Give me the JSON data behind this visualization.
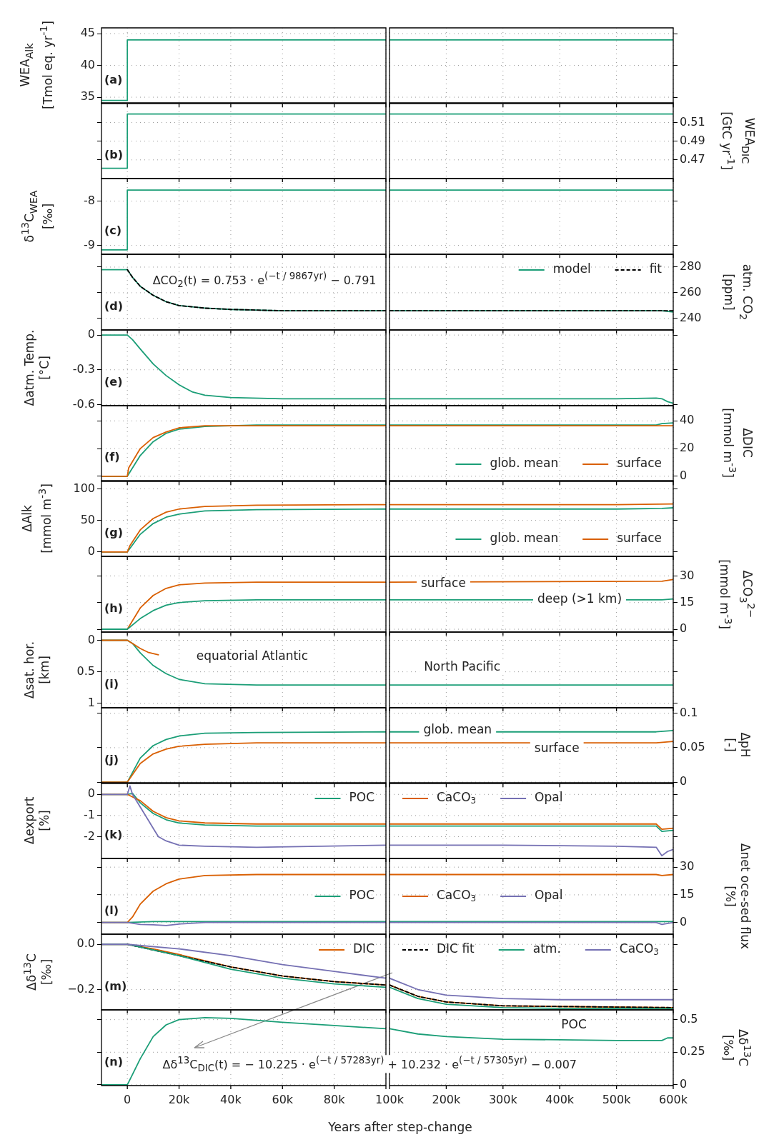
{
  "chart_data": [
    {
      "type": "line",
      "ylabel": "WEA$_{Alk}$\n[Tmol eq. yr$^{-1}$]",
      "annotations": [
        "(a)"
      ],
      "xlim": [
        -10000,
        100000
      ],
      "xticks": [
        0,
        20000,
        40000,
        60000,
        80000,
        100000
      ],
      "ylim": [
        34,
        45.9
      ],
      "yticks": [
        35,
        40,
        45
      ],
      "tick_labels": "y",
      "grid": true,
      "series": [
        {
          "color": "#1b9e77",
          "x": [
            -10000,
            0,
            0,
            100000
          ],
          "values": [
            34.5,
            34.5,
            44,
            44
          ]
        }
      ]
    },
    {
      "type": "line",
      "xlim": [
        100000,
        600000
      ],
      "xticks": [
        100000,
        200000,
        300000,
        400000,
        500000,
        600000
      ],
      "ylim": [
        34,
        45.9
      ],
      "yticks": [
        35,
        40,
        45
      ],
      "tick_labels": false,
      "grid": true,
      "series": [
        {
          "color": "#1b9e77",
          "x": [
            100000,
            600000
          ],
          "values": [
            44,
            44
          ]
        }
      ]
    },
    {
      "type": "line",
      "annotations": [
        "(b)"
      ],
      "xlim": [
        -10000,
        100000
      ],
      "xticks": [
        0,
        20000,
        40000,
        60000,
        80000,
        100000
      ],
      "ylim": [
        0.45,
        0.531
      ],
      "yticks": [
        0.47,
        0.49,
        0.51
      ],
      "tick_labels": false,
      "grid": true,
      "series": [
        {
          "color": "#1b9e77",
          "x": [
            -10000,
            0,
            0,
            100000
          ],
          "values": [
            0.461,
            0.461,
            0.519,
            0.519
          ]
        }
      ]
    },
    {
      "type": "line",
      "y2label": "WEA$_{DIC}$\n[GtC yr$^{-1}$]",
      "xlim": [
        100000,
        600000
      ],
      "xticks": [
        100000,
        200000,
        300000,
        400000,
        500000,
        600000
      ],
      "y2lim": [
        0.45,
        0.531
      ],
      "y2ticks": [
        0.47,
        0.49,
        0.51
      ],
      "tick_labels": "y",
      "grid": true,
      "series": [
        {
          "color": "#1b9e77",
          "axis": "y2",
          "x": [
            100000,
            600000
          ],
          "values": [
            0.519,
            0.519
          ]
        }
      ]
    },
    {
      "type": "line",
      "ylabel": "δ$^{13}$C$_{WEA}$\n[‰]",
      "annotations": [
        "(c)"
      ],
      "xlim": [
        -10000,
        100000
      ],
      "xticks": [
        0,
        20000,
        40000,
        60000,
        80000,
        100000
      ],
      "ylim": [
        -9.2,
        -7.49
      ],
      "yticks": [
        -9,
        -8
      ],
      "tick_labels": "y",
      "grid": true,
      "series": [
        {
          "color": "#1b9e77",
          "x": [
            -10000,
            0,
            0,
            100000
          ],
          "values": [
            -9.1,
            -9.1,
            -7.75,
            -7.75
          ]
        }
      ]
    },
    {
      "type": "line",
      "xlim": [
        100000,
        600000
      ],
      "xticks": [
        100000,
        200000,
        300000,
        400000,
        500000,
        600000
      ],
      "ylim": [
        -9.2,
        -7.49
      ],
      "yticks": [
        -9,
        -8
      ],
      "tick_labels": false,
      "grid": true,
      "series": [
        {
          "color": "#1b9e77",
          "x": [
            100000,
            600000
          ],
          "values": [
            -7.75,
            -7.75
          ]
        }
      ]
    },
    {
      "type": "line",
      "annotations": [
        "(d)",
        "ΔCO$_{2}$(t) = 0.753 · e$^{(−t / 9867yr)}$ − 0.791"
      ],
      "xlim": [
        -10000,
        100000
      ],
      "xticks": [
        0,
        20000,
        40000,
        60000,
        80000,
        100000
      ],
      "ylim": [
        231,
        290
      ],
      "yticks": [
        240,
        260,
        280
      ],
      "tick_labels": false,
      "grid": true,
      "series": [
        {
          "color": "#1b9e77",
          "x": [
            -10000,
            0,
            2000,
            5000,
            10000,
            15000,
            20000,
            30000,
            40000,
            60000,
            100000
          ],
          "values": [
            278,
            278,
            272,
            265,
            258,
            253,
            250,
            248,
            247,
            246,
            246
          ]
        },
        {
          "color": "#000000",
          "line_style": "dashed",
          "x": [
            0,
            2000,
            5000,
            10000,
            15000,
            20000,
            30000,
            40000,
            60000,
            100000
          ],
          "values": [
            278,
            272,
            265,
            258,
            253,
            250,
            248,
            247,
            246,
            246
          ]
        }
      ]
    },
    {
      "type": "line",
      "y2label": "atm. CO$_{2}$\n[ppm]",
      "legend": "top right",
      "xlim": [
        100000,
        600000
      ],
      "xticks": [
        100000,
        200000,
        300000,
        400000,
        500000,
        600000
      ],
      "y2lim": [
        231,
        290
      ],
      "y2ticks": [
        240,
        260,
        280
      ],
      "tick_labels": "y",
      "grid": true,
      "series": [
        {
          "name": "model",
          "color": "#1b9e77",
          "axis": "y2",
          "x": [
            100000,
            400000,
            580000,
            600000
          ],
          "values": [
            246,
            246,
            246,
            245
          ]
        },
        {
          "name": "fit",
          "color": "#000000",
          "line_style": "dashed",
          "axis": "y2",
          "x": [
            100000,
            600000
          ],
          "values": [
            246,
            246
          ]
        }
      ]
    },
    {
      "type": "line",
      "ylabel": "Δatm. Temp.\n[°C]",
      "annotations": [
        "(e)"
      ],
      "xlim": [
        -10000,
        100000
      ],
      "xticks": [
        0,
        20000,
        40000,
        60000,
        80000,
        100000
      ],
      "ylim": [
        -0.61,
        0.044
      ],
      "yticks": [
        0,
        -0.3,
        -0.6
      ],
      "tick_labels": "y",
      "grid": true,
      "series": [
        {
          "color": "#1b9e77",
          "x": [
            -10000,
            0,
            2000,
            5000,
            10000,
            15000,
            20000,
            25000,
            30000,
            40000,
            60000,
            100000
          ],
          "values": [
            0,
            0,
            -0.04,
            -0.12,
            -0.25,
            -0.35,
            -0.43,
            -0.49,
            -0.52,
            -0.54,
            -0.55,
            -0.55
          ]
        }
      ]
    },
    {
      "type": "line",
      "xlim": [
        100000,
        600000
      ],
      "xticks": [
        100000,
        200000,
        300000,
        400000,
        500000,
        600000
      ],
      "ylim": [
        -0.61,
        0.044
      ],
      "yticks": [
        0,
        -0.3,
        -0.6
      ],
      "tick_labels": false,
      "grid": true,
      "series": [
        {
          "color": "#1b9e77",
          "x": [
            100000,
            300000,
            500000,
            570000,
            580000,
            590000,
            600000
          ],
          "values": [
            -0.55,
            -0.55,
            -0.55,
            -0.545,
            -0.55,
            -0.575,
            -0.59
          ]
        }
      ]
    },
    {
      "type": "line",
      "annotations": [
        "(f)"
      ],
      "xlim": [
        -10000,
        100000
      ],
      "xticks": [
        0,
        20000,
        40000,
        60000,
        80000,
        100000
      ],
      "ylim": [
        -3.7,
        51
      ],
      "yticks": [
        0,
        20,
        40
      ],
      "tick_labels": false,
      "grid": true,
      "series": [
        {
          "color": "#1b9e77",
          "x": [
            -10000,
            0,
            5000,
            10000,
            15000,
            20000,
            30000,
            50000,
            100000
          ],
          "values": [
            0,
            0,
            15,
            25,
            31,
            34,
            36,
            37,
            37
          ]
        },
        {
          "color": "#d95f02",
          "x": [
            -10000,
            0,
            500,
            5000,
            10000,
            15000,
            20000,
            30000,
            50000,
            100000
          ],
          "values": [
            0,
            0,
            6,
            20,
            28,
            32,
            35,
            36.5,
            36.5,
            36.5
          ]
        }
      ]
    },
    {
      "type": "line",
      "y2label": "ΔDIC\n[mmol m$^{-3}$]",
      "legend": "bottom right",
      "xlim": [
        100000,
        600000
      ],
      "xticks": [
        100000,
        200000,
        300000,
        400000,
        500000,
        600000
      ],
      "y2lim": [
        -3.7,
        51
      ],
      "y2ticks": [
        0,
        20,
        40
      ],
      "tick_labels": "y",
      "grid": true,
      "series": [
        {
          "name": "glob. mean",
          "color": "#1b9e77",
          "axis": "y2",
          "x": [
            100000,
            570000,
            580000,
            600000
          ],
          "values": [
            37,
            37,
            38,
            38.5
          ]
        },
        {
          "name": "surface",
          "color": "#d95f02",
          "axis": "y2",
          "x": [
            100000,
            600000
          ],
          "values": [
            36.5,
            36.5
          ]
        }
      ]
    },
    {
      "type": "line",
      "ylabel": "ΔAlk\n[mmol m$^{-3}$]",
      "annotations": [
        "(g)"
      ],
      "xlim": [
        -10000,
        100000
      ],
      "xticks": [
        0,
        20000,
        40000,
        60000,
        80000,
        100000
      ],
      "ylim": [
        -7,
        113
      ],
      "yticks": [
        0,
        50,
        100
      ],
      "tick_labels": "y",
      "grid": true,
      "series": [
        {
          "color": "#1b9e77",
          "x": [
            -10000,
            0,
            5000,
            10000,
            15000,
            20000,
            30000,
            50000,
            100000
          ],
          "values": [
            0,
            0,
            28,
            45,
            55,
            60,
            65,
            67,
            68
          ]
        },
        {
          "color": "#d95f02",
          "x": [
            -10000,
            0,
            1000,
            5000,
            10000,
            15000,
            20000,
            30000,
            50000,
            100000
          ],
          "values": [
            0,
            0,
            10,
            35,
            53,
            63,
            68,
            72,
            74,
            75
          ]
        }
      ]
    },
    {
      "type": "line",
      "legend": "bottom right",
      "xlim": [
        100000,
        600000
      ],
      "xticks": [
        100000,
        200000,
        300000,
        400000,
        500000,
        600000
      ],
      "ylim": [
        -7,
        113
      ],
      "yticks": [
        0,
        50,
        100
      ],
      "tick_labels": false,
      "grid": true,
      "series": [
        {
          "name": "glob. mean",
          "color": "#1b9e77",
          "x": [
            100000,
            500000,
            580000,
            600000
          ],
          "values": [
            68,
            68,
            69,
            70
          ]
        },
        {
          "name": "surface",
          "color": "#d95f02",
          "x": [
            100000,
            500000,
            600000
          ],
          "values": [
            75,
            75,
            76
          ]
        }
      ]
    },
    {
      "type": "line",
      "annotations": [
        "(h)"
      ],
      "xlim": [
        -10000,
        100000
      ],
      "xticks": [
        0,
        20000,
        40000,
        60000,
        80000,
        100000
      ],
      "ylim": [
        -1.6,
        41
      ],
      "yticks": [
        0,
        15,
        30
      ],
      "tick_labels": false,
      "grid": true,
      "series": [
        {
          "color": "#d95f02",
          "x": [
            -10000,
            0,
            5000,
            10000,
            15000,
            20000,
            30000,
            50000,
            100000
          ],
          "values": [
            0,
            0,
            12,
            19,
            23,
            25,
            26,
            26.5,
            26.5
          ]
        },
        {
          "color": "#1b9e77",
          "x": [
            -10000,
            0,
            5000,
            10000,
            15000,
            20000,
            30000,
            50000,
            100000
          ],
          "values": [
            0,
            0,
            6,
            10.5,
            13.5,
            15,
            16,
            16.5,
            16.5
          ]
        }
      ]
    },
    {
      "type": "line",
      "y2label": "ΔCO$_{3}$$^{2−}$\n[mmol m$^{-3}$]",
      "xlim": [
        100000,
        600000
      ],
      "xticks": [
        100000,
        200000,
        300000,
        400000,
        500000,
        600000
      ],
      "y2lim": [
        -1.6,
        41
      ],
      "y2ticks": [
        0,
        15,
        30
      ],
      "tick_labels": "y",
      "grid": true,
      "series": [
        {
          "name": "surface",
          "color": "#d95f02",
          "axis": "y2",
          "x": [
            100000,
            580000,
            600000
          ],
          "values": [
            26.5,
            27,
            28
          ]
        },
        {
          "name": "deep (>1 km)",
          "color": "#1b9e77",
          "axis": "y2",
          "x": [
            100000,
            580000,
            600000
          ],
          "values": [
            16.5,
            16.5,
            17
          ]
        }
      ]
    },
    {
      "type": "line",
      "ylabel": "Δsat. hor.\n[km]",
      "annotations": [
        "(i)"
      ],
      "xlim": [
        -10000,
        100000
      ],
      "xticks": [
        0,
        20000,
        40000,
        60000,
        80000,
        100000
      ],
      "ylim": [
        1.07,
        -0.13
      ],
      "yticks": [
        0,
        0.5,
        1
      ],
      "tick_labels": "y",
      "grid": true,
      "series": [
        {
          "color": "#1b9e77",
          "x": [
            -10000,
            0,
            2000,
            5000,
            10000,
            15000,
            20000,
            30000,
            50000,
            100000
          ],
          "values": [
            0,
            0,
            0.05,
            0.2,
            0.4,
            0.53,
            0.62,
            0.69,
            0.71,
            0.71
          ]
        },
        {
          "name": "equatorial Atlantic",
          "color": "#d95f02",
          "x": [
            -10000,
            0,
            2000,
            5000,
            8000,
            12000
          ],
          "values": [
            0,
            0,
            0.05,
            0.13,
            0.19,
            0.23
          ]
        }
      ]
    },
    {
      "type": "line",
      "xlim": [
        100000,
        600000
      ],
      "xticks": [
        100000,
        200000,
        300000,
        400000,
        500000,
        600000
      ],
      "ylim": [
        1.07,
        -0.13
      ],
      "yticks": [
        0,
        0.5,
        1
      ],
      "tick_labels": false,
      "grid": true,
      "series": [
        {
          "name": "North Pacific",
          "color": "#1b9e77",
          "x": [
            100000,
            600000
          ],
          "values": [
            0.71,
            0.71
          ]
        }
      ]
    },
    {
      "type": "line",
      "annotations": [
        "(j)"
      ],
      "xlim": [
        -10000,
        100000
      ],
      "xticks": [
        0,
        20000,
        40000,
        60000,
        80000,
        100000
      ],
      "ylim": [
        -0.002,
        0.108
      ],
      "yticks": [
        0,
        0.05,
        0.1
      ],
      "tick_labels": false,
      "grid": true,
      "series": [
        {
          "color": "#1b9e77",
          "x": [
            -10000,
            0,
            5000,
            10000,
            15000,
            20000,
            30000,
            50000,
            100000
          ],
          "values": [
            0,
            0,
            0.035,
            0.053,
            0.062,
            0.067,
            0.071,
            0.072,
            0.073
          ]
        },
        {
          "color": "#d95f02",
          "x": [
            -10000,
            0,
            5000,
            10000,
            15000,
            20000,
            30000,
            50000,
            100000
          ],
          "values": [
            0,
            0,
            0.027,
            0.041,
            0.048,
            0.052,
            0.055,
            0.057,
            0.057
          ]
        }
      ]
    },
    {
      "type": "line",
      "y2label": "ΔpH\n[-]",
      "xlim": [
        100000,
        600000
      ],
      "xticks": [
        100000,
        200000,
        300000,
        400000,
        500000,
        600000
      ],
      "y2lim": [
        -0.002,
        0.108
      ],
      "y2ticks": [
        0,
        0.05,
        0.1
      ],
      "tick_labels": "y",
      "grid": true,
      "series": [
        {
          "name": "glob. mean",
          "color": "#1b9e77",
          "axis": "y2",
          "x": [
            100000,
            570000,
            600000
          ],
          "values": [
            0.073,
            0.073,
            0.075
          ]
        },
        {
          "name": "surface",
          "color": "#d95f02",
          "axis": "y2",
          "x": [
            100000,
            570000,
            600000
          ],
          "values": [
            0.057,
            0.057,
            0.059
          ]
        }
      ]
    },
    {
      "type": "line",
      "ylabel": "Δexport\n[%]",
      "annotations": [
        "(k)"
      ],
      "legend": "top right",
      "xlim": [
        -10000,
        100000
      ],
      "xticks": [
        0,
        20000,
        40000,
        60000,
        80000,
        100000
      ],
      "ylim": [
        -3.03,
        0.55
      ],
      "yticks": [
        0,
        -1,
        -2
      ],
      "tick_labels": "y",
      "grid": true,
      "series": [
        {
          "name": "POC",
          "color": "#1b9e77",
          "x": [
            -10000,
            0,
            2000,
            5000,
            10000,
            15000,
            20000,
            30000,
            50000,
            100000
          ],
          "values": [
            0,
            0,
            0.05,
            -0.4,
            -0.9,
            -1.2,
            -1.35,
            -1.45,
            -1.5,
            -1.5
          ]
        },
        {
          "color": "#d95f02",
          "x": [
            -10000,
            0,
            5000,
            10000,
            15000,
            20000,
            30000,
            50000,
            100000
          ],
          "values": [
            0,
            0,
            -0.3,
            -0.8,
            -1.1,
            -1.25,
            -1.35,
            -1.4,
            -1.4
          ]
        },
        {
          "color": "#7570b3",
          "x": [
            -10000,
            0,
            1000,
            2000,
            5000,
            8000,
            10000,
            12000,
            15000,
            20000,
            30000,
            50000,
            100000
          ],
          "values": [
            0,
            0,
            0.4,
            0,
            -0.6,
            -1.2,
            -1.6,
            -2,
            -2.2,
            -2.4,
            -2.45,
            -2.5,
            -2.4
          ]
        }
      ]
    },
    {
      "type": "line",
      "legend": "top left",
      "xlim": [
        100000,
        600000
      ],
      "xticks": [
        100000,
        200000,
        300000,
        400000,
        500000,
        600000
      ],
      "ylim": [
        -3.03,
        0.55
      ],
      "yticks": [
        0,
        -1,
        -2
      ],
      "tick_labels": false,
      "grid": true,
      "series": [
        {
          "color": "#1b9e77",
          "x": [
            100000,
            570000,
            580000,
            600000
          ],
          "values": [
            -1.5,
            -1.5,
            -1.75,
            -1.7
          ]
        },
        {
          "name": "CaCO$_{3}$",
          "color": "#d95f02",
          "x": [
            100000,
            570000,
            580000,
            600000
          ],
          "values": [
            -1.4,
            -1.4,
            -1.65,
            -1.6
          ]
        },
        {
          "name": "Opal",
          "color": "#7570b3",
          "x": [
            100000,
            300000,
            500000,
            570000,
            580000,
            590000,
            600000
          ],
          "values": [
            -2.4,
            -2.4,
            -2.45,
            -2.5,
            -2.9,
            -2.7,
            -2.6
          ]
        }
      ]
    },
    {
      "type": "line",
      "annotations": [
        "(l)"
      ],
      "legend": "right",
      "xlim": [
        -10000,
        100000
      ],
      "xticks": [
        0,
        20000,
        40000,
        60000,
        80000,
        100000
      ],
      "ylim": [
        -6.3,
        34.7
      ],
      "yticks": [
        0,
        15,
        30
      ],
      "tick_labels": false,
      "grid": true,
      "series": [
        {
          "name": "POC",
          "color": "#1b9e77",
          "x": [
            -10000,
            0,
            10000,
            100000
          ],
          "values": [
            0,
            0,
            0.5,
            0.5
          ]
        },
        {
          "color": "#d95f02",
          "x": [
            -10000,
            0,
            2000,
            5000,
            10000,
            15000,
            20000,
            30000,
            50000,
            100000
          ],
          "values": [
            0,
            0,
            3,
            10,
            17,
            21,
            23.5,
            25.5,
            26,
            26
          ]
        },
        {
          "color": "#7570b3",
          "x": [
            -10000,
            0,
            5000,
            10000,
            15000,
            20000,
            30000,
            100000
          ],
          "values": [
            0,
            0,
            -1,
            -1.2,
            -1.6,
            -0.8,
            0,
            0
          ]
        }
      ]
    },
    {
      "type": "line",
      "y2label": "Δnet oce-sed flux\n[%]",
      "legend": "left",
      "xlim": [
        100000,
        600000
      ],
      "xticks": [
        100000,
        200000,
        300000,
        400000,
        500000,
        600000
      ],
      "y2lim": [
        -6.3,
        34.7
      ],
      "y2ticks": [
        0,
        15,
        30
      ],
      "tick_labels": "y",
      "grid": true,
      "series": [
        {
          "color": "#1b9e77",
          "axis": "y2",
          "x": [
            100000,
            600000
          ],
          "values": [
            0.5,
            0.5
          ]
        },
        {
          "name": "CaCO$_{3}$",
          "color": "#d95f02",
          "axis": "y2",
          "x": [
            100000,
            570000,
            580000,
            600000
          ],
          "values": [
            26,
            26,
            25.5,
            26
          ]
        },
        {
          "name": "Opal",
          "color": "#7570b3",
          "axis": "y2",
          "x": [
            100000,
            570000,
            580000,
            600000
          ],
          "values": [
            0,
            0,
            -1,
            0
          ]
        }
      ]
    },
    {
      "type": "line",
      "ylabel": "Δδ$^{13}$C\n[‰]",
      "annotations": [
        "(m)"
      ],
      "legend": "top right",
      "xlim": [
        -10000,
        100000
      ],
      "xticks": [
        0,
        20000,
        40000,
        60000,
        80000,
        100000
      ],
      "ylim": [
        -0.29,
        0.045
      ],
      "yticks": [
        {
          "value": 0,
          "label": "0.0"
        },
        {
          "value": -0.2,
          "label": "−0.2"
        }
      ],
      "tick_labels": "y",
      "grid": true,
      "series": [
        {
          "name": "DIC",
          "color": "#d95f02",
          "x": [
            -10000,
            0,
            10000,
            20000,
            40000,
            60000,
            80000,
            100000
          ],
          "values": [
            0,
            0,
            -0.02,
            -0.045,
            -0.1,
            -0.14,
            -0.165,
            -0.18
          ]
        },
        {
          "color": "#000000",
          "line_style": "dashed",
          "x": [
            0,
            10000,
            20000,
            40000,
            60000,
            80000,
            100000
          ],
          "values": [
            0,
            -0.025,
            -0.05,
            -0.1,
            -0.14,
            -0.165,
            -0.18
          ]
        },
        {
          "color": "#1b9e77",
          "x": [
            -10000,
            0,
            10000,
            20000,
            40000,
            60000,
            80000,
            100000
          ],
          "values": [
            0,
            0,
            -0.025,
            -0.05,
            -0.11,
            -0.15,
            -0.175,
            -0.19
          ]
        },
        {
          "color": "#7570b3",
          "x": [
            -10000,
            0,
            20000,
            40000,
            60000,
            80000,
            100000
          ],
          "values": [
            0,
            0,
            -0.02,
            -0.05,
            -0.09,
            -0.12,
            -0.15
          ]
        }
      ]
    },
    {
      "type": "line",
      "legend": "top left",
      "xlim": [
        100000,
        600000
      ],
      "xticks": [
        100000,
        200000,
        300000,
        400000,
        500000,
        600000
      ],
      "ylim": [
        -0.29,
        0.045
      ],
      "yticks": [
        0,
        -0.2
      ],
      "tick_labels": false,
      "grid": true,
      "series": [
        {
          "color": "#d95f02",
          "x": [
            100000,
            150000,
            200000,
            300000,
            400000,
            600000
          ],
          "values": [
            -0.18,
            -0.23,
            -0.255,
            -0.272,
            -0.275,
            -0.28
          ]
        },
        {
          "name": "DIC fit",
          "color": "#000000",
          "line_style": "dashed",
          "x": [
            100000,
            150000,
            200000,
            300000,
            400000,
            600000
          ],
          "values": [
            -0.18,
            -0.23,
            -0.255,
            -0.272,
            -0.275,
            -0.28
          ]
        },
        {
          "name": "atm.",
          "color": "#1b9e77",
          "x": [
            100000,
            150000,
            200000,
            300000,
            400000,
            600000
          ],
          "values": [
            -0.19,
            -0.24,
            -0.265,
            -0.28,
            -0.283,
            -0.285
          ]
        },
        {
          "name": "CaCO$_{3}$",
          "color": "#7570b3",
          "x": [
            100000,
            150000,
            200000,
            300000,
            400000,
            600000
          ],
          "values": [
            -0.15,
            -0.2,
            -0.225,
            -0.24,
            -0.245,
            -0.245
          ]
        }
      ]
    },
    {
      "type": "line",
      "xlabel": "Years after step-change",
      "annotations": [
        "(n)",
        "Δδ$^{13}$C$_{DIC}$(t) = − 10.225 · e$^{(−t / 57283yr)}$ + 10.232 · e$^{(−t / 57305yr)}$ − 0.007"
      ],
      "xlim": [
        -10000,
        100000
      ],
      "xticks": [
        0,
        {
          "value": 20000,
          "label": "20k"
        },
        {
          "value": 40000,
          "label": "40k"
        },
        {
          "value": 60000,
          "label": "60k"
        },
        {
          "value": 80000,
          "label": "80k"
        },
        {
          "value": 100000,
          "label": null
        }
      ],
      "ylim": [
        -0.006,
        0.575
      ],
      "yticks": [
        0,
        0.25,
        0.5
      ],
      "tick_labels": "x",
      "grid": true,
      "series": [
        {
          "color": "#1b9e77",
          "x": [
            -10000,
            0,
            2000,
            5000,
            10000,
            15000,
            20000,
            30000,
            40000,
            60000,
            80000,
            100000
          ],
          "values": [
            0,
            0,
            0.08,
            0.2,
            0.37,
            0.46,
            0.5,
            0.515,
            0.51,
            0.48,
            0.455,
            0.43
          ]
        }
      ]
    },
    {
      "type": "line",
      "y2label": "Δδ$^{13}$C\n[‰]",
      "xlim": [
        100000,
        600000
      ],
      "xticks": [
        {
          "value": 100000,
          "label": "100k"
        },
        {
          "value": 200000,
          "label": "200k"
        },
        {
          "value": 300000,
          "label": "300k"
        },
        {
          "value": 400000,
          "label": "400k"
        },
        {
          "value": 500000,
          "label": "500k"
        },
        {
          "value": 600000,
          "label": "600k"
        }
      ],
      "y2lim": [
        -0.006,
        0.575
      ],
      "y2ticks": [
        0,
        0.25,
        0.5
      ],
      "grid": true,
      "series": [
        {
          "name": "POC",
          "color": "#1b9e77",
          "axis": "y2",
          "x": [
            100000,
            150000,
            200000,
            300000,
            400000,
            500000,
            580000,
            590000,
            600000
          ],
          "values": [
            0.43,
            0.39,
            0.37,
            0.35,
            0.345,
            0.34,
            0.34,
            0.36,
            0.36
          ]
        }
      ]
    }
  ]
}
